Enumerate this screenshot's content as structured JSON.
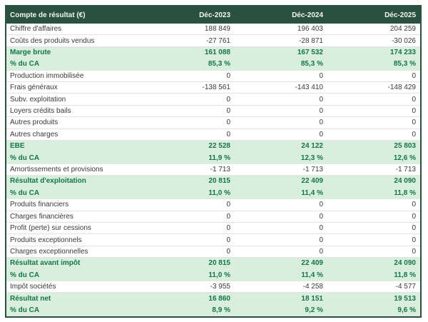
{
  "chart_data": {
    "type": "table",
    "title": "Compte de résultat (€)",
    "column_headers": [
      "Compte de résultat (€)",
      "Déc-2023",
      "Déc-2024",
      "Déc-2025"
    ],
    "rows": [
      {
        "label": "Chiffre d'affaires",
        "values": [
          "188 849",
          "196 403",
          "204 259"
        ],
        "highlight": false
      },
      {
        "label": "Coûts des produits vendus",
        "values": [
          "-27 761",
          "-28 871",
          "-30 026"
        ],
        "highlight": false
      },
      {
        "label": "Marge brute",
        "values": [
          "161 088",
          "167 532",
          "174 233"
        ],
        "highlight": true
      },
      {
        "label": "% du CA",
        "values": [
          "85,3 %",
          "85,3 %",
          "85,3 %"
        ],
        "highlight": true
      },
      {
        "label": "Production immobilisée",
        "values": [
          "0",
          "0",
          "0"
        ],
        "highlight": false
      },
      {
        "label": "Frais généraux",
        "values": [
          "-138 561",
          "-143 410",
          "-148 429"
        ],
        "highlight": false
      },
      {
        "label": "Subv. exploitation",
        "values": [
          "0",
          "0",
          "0"
        ],
        "highlight": false
      },
      {
        "label": "Loyers crédits bails",
        "values": [
          "0",
          "0",
          "0"
        ],
        "highlight": false
      },
      {
        "label": "Autres produits",
        "values": [
          "0",
          "0",
          "0"
        ],
        "highlight": false
      },
      {
        "label": "Autres charges",
        "values": [
          "0",
          "0",
          "0"
        ],
        "highlight": false
      },
      {
        "label": "EBE",
        "values": [
          "22 528",
          "24 122",
          "25 803"
        ],
        "highlight": true
      },
      {
        "label": "% du CA",
        "values": [
          "11,9 %",
          "12,3 %",
          "12,6 %"
        ],
        "highlight": true
      },
      {
        "label": "Amortissements et provisions",
        "values": [
          "-1 713",
          "-1 713",
          "-1 713"
        ],
        "highlight": false
      },
      {
        "label": "Résultat d'exploitation",
        "values": [
          "20 815",
          "22 409",
          "24 090"
        ],
        "highlight": true
      },
      {
        "label": "% du CA",
        "values": [
          "11,0 %",
          "11,4 %",
          "11,8 %"
        ],
        "highlight": true
      },
      {
        "label": "Produits financiers",
        "values": [
          "0",
          "0",
          "0"
        ],
        "highlight": false
      },
      {
        "label": "Charges financières",
        "values": [
          "0",
          "0",
          "0"
        ],
        "highlight": false
      },
      {
        "label": "Profit (perte) sur cessions",
        "values": [
          "0",
          "0",
          "0"
        ],
        "highlight": false
      },
      {
        "label": "Produits exceptionnels",
        "values": [
          "0",
          "0",
          "0"
        ],
        "highlight": false
      },
      {
        "label": "Charges exceptionnelles",
        "values": [
          "0",
          "0",
          "0"
        ],
        "highlight": false
      },
      {
        "label": "Résultat avant impôt",
        "values": [
          "20 815",
          "22 409",
          "24 090"
        ],
        "highlight": true
      },
      {
        "label": "% du CA",
        "values": [
          "11,0 %",
          "11,4 %",
          "11,8 %"
        ],
        "highlight": true
      },
      {
        "label": "Impôt sociétés",
        "values": [
          "-3 955",
          "-4 258",
          "-4 577"
        ],
        "highlight": false
      },
      {
        "label": "Résultat net",
        "values": [
          "16 860",
          "18 151",
          "19 513"
        ],
        "highlight": true
      },
      {
        "label": "% du CA",
        "values": [
          "8,9 %",
          "9,2 %",
          "9,6 %"
        ],
        "highlight": true
      }
    ]
  },
  "colors": {
    "header_bg": "#2a5042",
    "header_text": "#f4f7f4",
    "highlight_bg": "#d9eedd",
    "highlight_text": "#14764a",
    "body_text": "#3a3a3a",
    "row_divider": "#e3e3e3",
    "border": "#2a5042",
    "page_bg": "#ffffff"
  }
}
